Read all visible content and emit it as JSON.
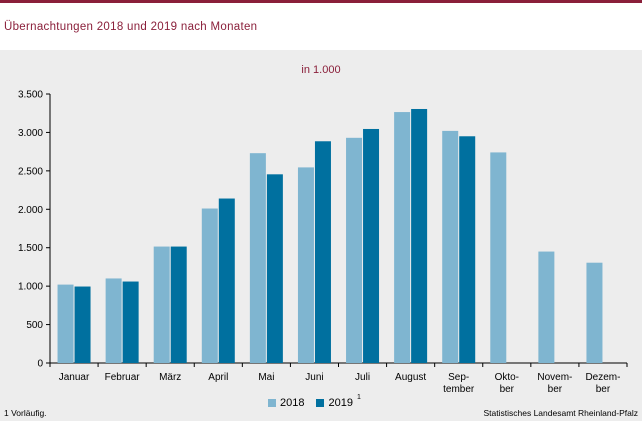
{
  "title": "Übernachtungen 2018 und 2019 nach Monaten",
  "footnote": "1 Vorläufig.",
  "source": "Statistisches Landesamt Rheinland-Pfalz",
  "chart_data": {
    "type": "bar",
    "subtitle": "in 1.000",
    "categories": [
      [
        "Januar"
      ],
      [
        "Februar"
      ],
      [
        "März"
      ],
      [
        "April"
      ],
      [
        "Mai"
      ],
      [
        "Juni"
      ],
      [
        "Juli"
      ],
      [
        "August"
      ],
      [
        "Sep-",
        "tember"
      ],
      [
        "Okto-",
        "ber"
      ],
      [
        "Novem-",
        "ber"
      ],
      [
        "Dezem-",
        "ber"
      ]
    ],
    "series": [
      {
        "name": "2018",
        "color": "#7fb5d0",
        "values": [
          1020,
          1100,
          1515,
          2010,
          2730,
          2545,
          2930,
          3265,
          3020,
          2740,
          1450,
          1305
        ]
      },
      {
        "name": "2019",
        "color": "#00709f",
        "footnote_mark": "1",
        "values": [
          995,
          1060,
          1515,
          2140,
          2455,
          2885,
          3045,
          3305,
          2950,
          null,
          null,
          null
        ]
      }
    ],
    "ylim": [
      0,
      3500
    ],
    "yticks": [
      0,
      500,
      1000,
      1500,
      2000,
      2500,
      3000,
      3500
    ],
    "ytick_labels": [
      "0",
      "500",
      "1.000",
      "1.500",
      "2.000",
      "2.500",
      "3.000",
      "3.500"
    ],
    "grid": false,
    "legend_position": "bottom-center"
  }
}
